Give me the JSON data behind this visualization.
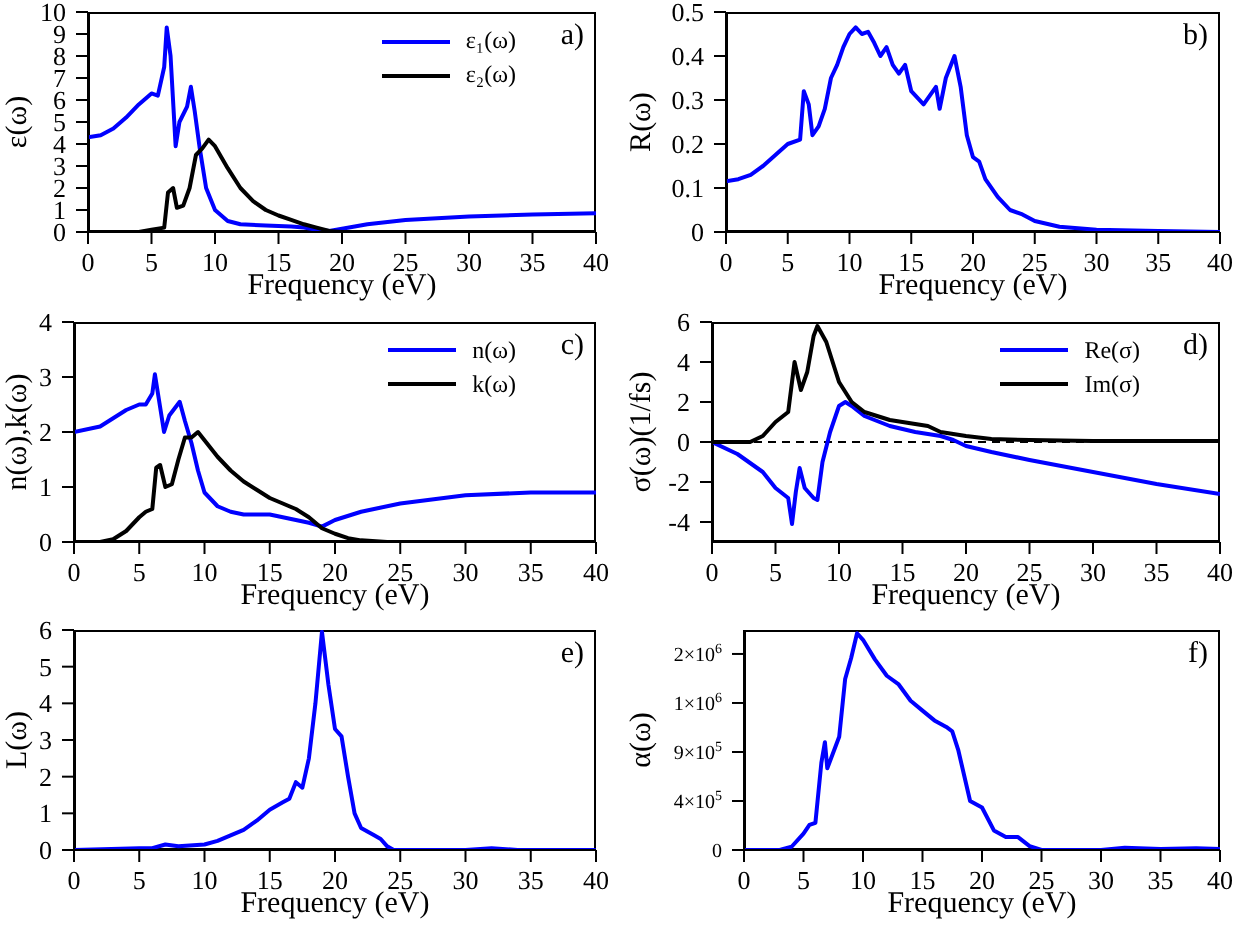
{
  "chart_data": [
    {
      "type": "line",
      "xlabel": "Frequency (eV)",
      "ylabel": "ε(ω)",
      "annotations": [
        "a)"
      ],
      "legend": "top right",
      "xlim": [
        0,
        40
      ],
      "xticks": [
        0,
        5,
        10,
        15,
        20,
        25,
        30,
        35,
        40
      ],
      "ylim": [
        0,
        10
      ],
      "yticks": [
        0,
        1,
        2,
        3,
        4,
        5,
        6,
        7,
        8,
        9,
        10
      ],
      "series": [
        {
          "name": "ε₁(ω)",
          "color": "#0000ff",
          "x": [
            0,
            1,
            2,
            3,
            4,
            5,
            5.5,
            6,
            6.2,
            6.5,
            6.9,
            7.2,
            7.8,
            8.1,
            8.4,
            8.8,
            9.3,
            10,
            11,
            12,
            14,
            16,
            17,
            18,
            19,
            20,
            22,
            25,
            30,
            35,
            40
          ],
          "values": [
            4.3,
            4.4,
            4.7,
            5.2,
            5.8,
            6.3,
            6.2,
            7.5,
            9.3,
            8,
            3.9,
            5.0,
            5.7,
            6.6,
            5.5,
            3.8,
            2.0,
            1.0,
            0.5,
            0.35,
            0.3,
            0.25,
            0.2,
            0.1,
            0.05,
            0.15,
            0.35,
            0.55,
            0.7,
            0.8,
            0.85
          ]
        },
        {
          "name": "ε₂(ω)",
          "color": "#000000",
          "x": [
            0,
            4,
            5,
            6,
            6.3,
            6.7,
            7,
            7.5,
            8,
            8.5,
            9,
            9.5,
            10,
            11,
            12,
            13,
            14,
            15,
            16,
            17,
            18,
            19,
            20,
            40
          ],
          "values": [
            0,
            0,
            0.1,
            0.2,
            1.8,
            2.0,
            1.1,
            1.2,
            2.0,
            3.5,
            3.8,
            4.2,
            3.9,
            2.9,
            2.0,
            1.4,
            1.0,
            0.75,
            0.55,
            0.35,
            0.2,
            0.05,
            0,
            0
          ]
        }
      ]
    },
    {
      "type": "line",
      "xlabel": "Frequency (eV)",
      "ylabel": "R(ω)",
      "annotations": [
        "b)"
      ],
      "xlim": [
        0,
        40
      ],
      "xticks": [
        0,
        5,
        10,
        15,
        20,
        25,
        30,
        35,
        40
      ],
      "ylim": [
        0,
        0.5
      ],
      "yticks": [
        0,
        0.1,
        0.2,
        0.3,
        0.4,
        0.5
      ],
      "series": [
        {
          "color": "#0000ff",
          "x": [
            0,
            1,
            2,
            3,
            4,
            5,
            6,
            6.3,
            6.7,
            7,
            7.5,
            8,
            8.5,
            9,
            9.5,
            10,
            10.5,
            11,
            11.5,
            12,
            12.5,
            13,
            13.5,
            14,
            14.5,
            15,
            16,
            16.5,
            17,
            17.3,
            17.8,
            18.5,
            19,
            19.5,
            20,
            20.5,
            21,
            22,
            23,
            24,
            25,
            27,
            30,
            35,
            40
          ],
          "values": [
            0.115,
            0.12,
            0.13,
            0.15,
            0.175,
            0.2,
            0.21,
            0.32,
            0.29,
            0.22,
            0.24,
            0.28,
            0.35,
            0.38,
            0.42,
            0.45,
            0.465,
            0.45,
            0.455,
            0.43,
            0.4,
            0.42,
            0.38,
            0.36,
            0.38,
            0.32,
            0.29,
            0.31,
            0.33,
            0.28,
            0.35,
            0.4,
            0.33,
            0.22,
            0.17,
            0.16,
            0.12,
            0.08,
            0.05,
            0.04,
            0.025,
            0.012,
            0.005,
            0.002,
            0
          ]
        }
      ]
    },
    {
      "type": "line",
      "xlabel": "Frequency (eV)",
      "ylabel": "n(ω),k(ω)",
      "annotations": [
        "c)"
      ],
      "legend": "top right",
      "xlim": [
        0,
        40
      ],
      "xticks": [
        0,
        5,
        10,
        15,
        20,
        25,
        30,
        35,
        40
      ],
      "ylim": [
        0,
        4
      ],
      "yticks": [
        0,
        1,
        2,
        3,
        4
      ],
      "series": [
        {
          "name": "n(ω)",
          "color": "#0000ff",
          "x": [
            0,
            2,
            3,
            4,
            5,
            5.5,
            6,
            6.2,
            6.5,
            6.9,
            7.3,
            8.1,
            8.5,
            9,
            9.5,
            10,
            11,
            12,
            13,
            15,
            17,
            18,
            19,
            20,
            22,
            25,
            30,
            35,
            40
          ],
          "values": [
            2.0,
            2.1,
            2.25,
            2.4,
            2.5,
            2.5,
            2.7,
            3.05,
            2.6,
            2.0,
            2.3,
            2.55,
            2.2,
            1.8,
            1.3,
            0.9,
            0.65,
            0.55,
            0.5,
            0.5,
            0.4,
            0.35,
            0.28,
            0.4,
            0.55,
            0.7,
            0.85,
            0.9,
            0.9
          ]
        },
        {
          "name": "k(ω)",
          "color": "#000000",
          "x": [
            0,
            2,
            3,
            4,
            5,
            5.5,
            6,
            6.3,
            6.6,
            7,
            7.5,
            8,
            8.5,
            9,
            9.5,
            10,
            11,
            12,
            13,
            14,
            15,
            16,
            17,
            18,
            19,
            20,
            21,
            22,
            24,
            40
          ],
          "values": [
            0,
            0,
            0.05,
            0.2,
            0.45,
            0.55,
            0.6,
            1.35,
            1.4,
            1.0,
            1.05,
            1.5,
            1.9,
            1.9,
            2.0,
            1.85,
            1.55,
            1.3,
            1.1,
            0.95,
            0.8,
            0.7,
            0.6,
            0.45,
            0.25,
            0.15,
            0.07,
            0.03,
            0,
            0
          ]
        }
      ]
    },
    {
      "type": "line",
      "xlabel": "Frequency (eV)",
      "ylabel": "σ(ω)(1/fs)",
      "annotations": [
        "d)"
      ],
      "legend": "top right",
      "xlim": [
        0,
        40
      ],
      "xticks": [
        0,
        5,
        10,
        15,
        20,
        25,
        30,
        35,
        40
      ],
      "ylim": [
        -5,
        6
      ],
      "yticks": [
        -4,
        -2,
        0,
        2,
        4,
        6
      ],
      "ref_lines": [
        {
          "axis": "y",
          "value": 0,
          "color": "#000000",
          "line_style": "dashed"
        }
      ],
      "series": [
        {
          "name": "Re(σ)",
          "color": "#0000ff",
          "x": [
            0,
            2,
            4,
            5,
            6,
            6.3,
            6.6,
            6.9,
            7.3,
            8,
            8.3,
            8.7,
            9.3,
            10,
            10.5,
            11,
            12,
            14,
            16,
            18,
            19,
            20,
            22,
            25,
            30,
            35,
            40
          ],
          "values": [
            0,
            -0.6,
            -1.5,
            -2.3,
            -2.8,
            -4.1,
            -2.5,
            -1.3,
            -2.3,
            -2.8,
            -2.9,
            -1.0,
            0.5,
            1.8,
            2.0,
            1.8,
            1.3,
            0.8,
            0.5,
            0.3,
            0.1,
            -0.2,
            -0.5,
            -0.9,
            -1.5,
            -2.1,
            -2.6
          ]
        },
        {
          "name": "Im(σ)",
          "color": "#000000",
          "x": [
            0,
            3,
            4,
            5,
            6,
            6.3,
            6.5,
            7,
            7.5,
            8,
            8.3,
            9,
            9.5,
            10,
            11,
            12,
            14,
            16,
            17,
            18,
            20,
            22,
            25,
            30,
            40
          ],
          "values": [
            0,
            0,
            0.3,
            1.0,
            1.5,
            3.0,
            4.0,
            2.6,
            3.5,
            5.3,
            5.8,
            5.0,
            4.0,
            3.0,
            2.0,
            1.5,
            1.1,
            0.9,
            0.8,
            0.5,
            0.3,
            0.15,
            0.1,
            0.05,
            0.05
          ]
        }
      ]
    },
    {
      "type": "line",
      "xlabel": "Frequency (eV)",
      "ylabel": "L(ω)",
      "annotations": [
        "e)"
      ],
      "xlim": [
        0,
        40
      ],
      "xticks": [
        0,
        5,
        10,
        15,
        20,
        25,
        30,
        35,
        40
      ],
      "ylim": [
        0,
        6
      ],
      "yticks": [
        0,
        1,
        2,
        3,
        4,
        5,
        6
      ],
      "series": [
        {
          "color": "#0000ff",
          "x": [
            0,
            5,
            6,
            7,
            8,
            10,
            11,
            12,
            13,
            14,
            15,
            16,
            16.5,
            17,
            17.5,
            18,
            18.5,
            19,
            19.5,
            20,
            20.5,
            21,
            21.5,
            22,
            23,
            23.5,
            24,
            24.5,
            30,
            32,
            34,
            40
          ],
          "values": [
            0,
            0.05,
            0.05,
            0.15,
            0.1,
            0.15,
            0.25,
            0.4,
            0.55,
            0.8,
            1.1,
            1.3,
            1.4,
            1.85,
            1.7,
            2.5,
            4.0,
            5.95,
            4.5,
            3.3,
            3.1,
            2.0,
            1.0,
            0.6,
            0.4,
            0.3,
            0.1,
            0,
            0,
            0.05,
            0,
            0
          ]
        }
      ]
    },
    {
      "type": "line",
      "xlabel": "Frequency (eV)",
      "ylabel": "α(ω)",
      "annotations": [
        "f)"
      ],
      "xlim": [
        0,
        40
      ],
      "xticks": [
        0,
        5,
        10,
        15,
        20,
        25,
        30,
        35,
        40
      ],
      "ylim": [
        0,
        2020000
      ],
      "yticks": [
        0,
        {
          "value": 450000,
          "label": "4×10$^{5}$"
        },
        {
          "value": 900000,
          "label": "9×10$^{5}$"
        },
        {
          "value": 1350000,
          "label": "1×10$^{6}$"
        },
        {
          "value": 1800000,
          "label": "2×10$^{6}$"
        }
      ],
      "series": [
        {
          "color": "#0000ff",
          "x": [
            0,
            3,
            4,
            5,
            5.5,
            6,
            6.5,
            6.8,
            7,
            8,
            8.5,
            9,
            9.5,
            10,
            11,
            12,
            13,
            14,
            15,
            16,
            17,
            17.5,
            18,
            19,
            20,
            21,
            22,
            23,
            24,
            25,
            30,
            32,
            35,
            38,
            40
          ],
          "values": [
            0,
            0,
            30000,
            150000,
            230000,
            250000,
            800000,
            990000,
            750000,
            1040000,
            1570000,
            1760000,
            1990000,
            1930000,
            1750000,
            1600000,
            1520000,
            1370000,
            1280000,
            1190000,
            1130000,
            1090000,
            920000,
            450000,
            390000,
            180000,
            120000,
            120000,
            36000,
            0,
            0,
            20000,
            10000,
            15000,
            10000
          ]
        }
      ]
    }
  ]
}
